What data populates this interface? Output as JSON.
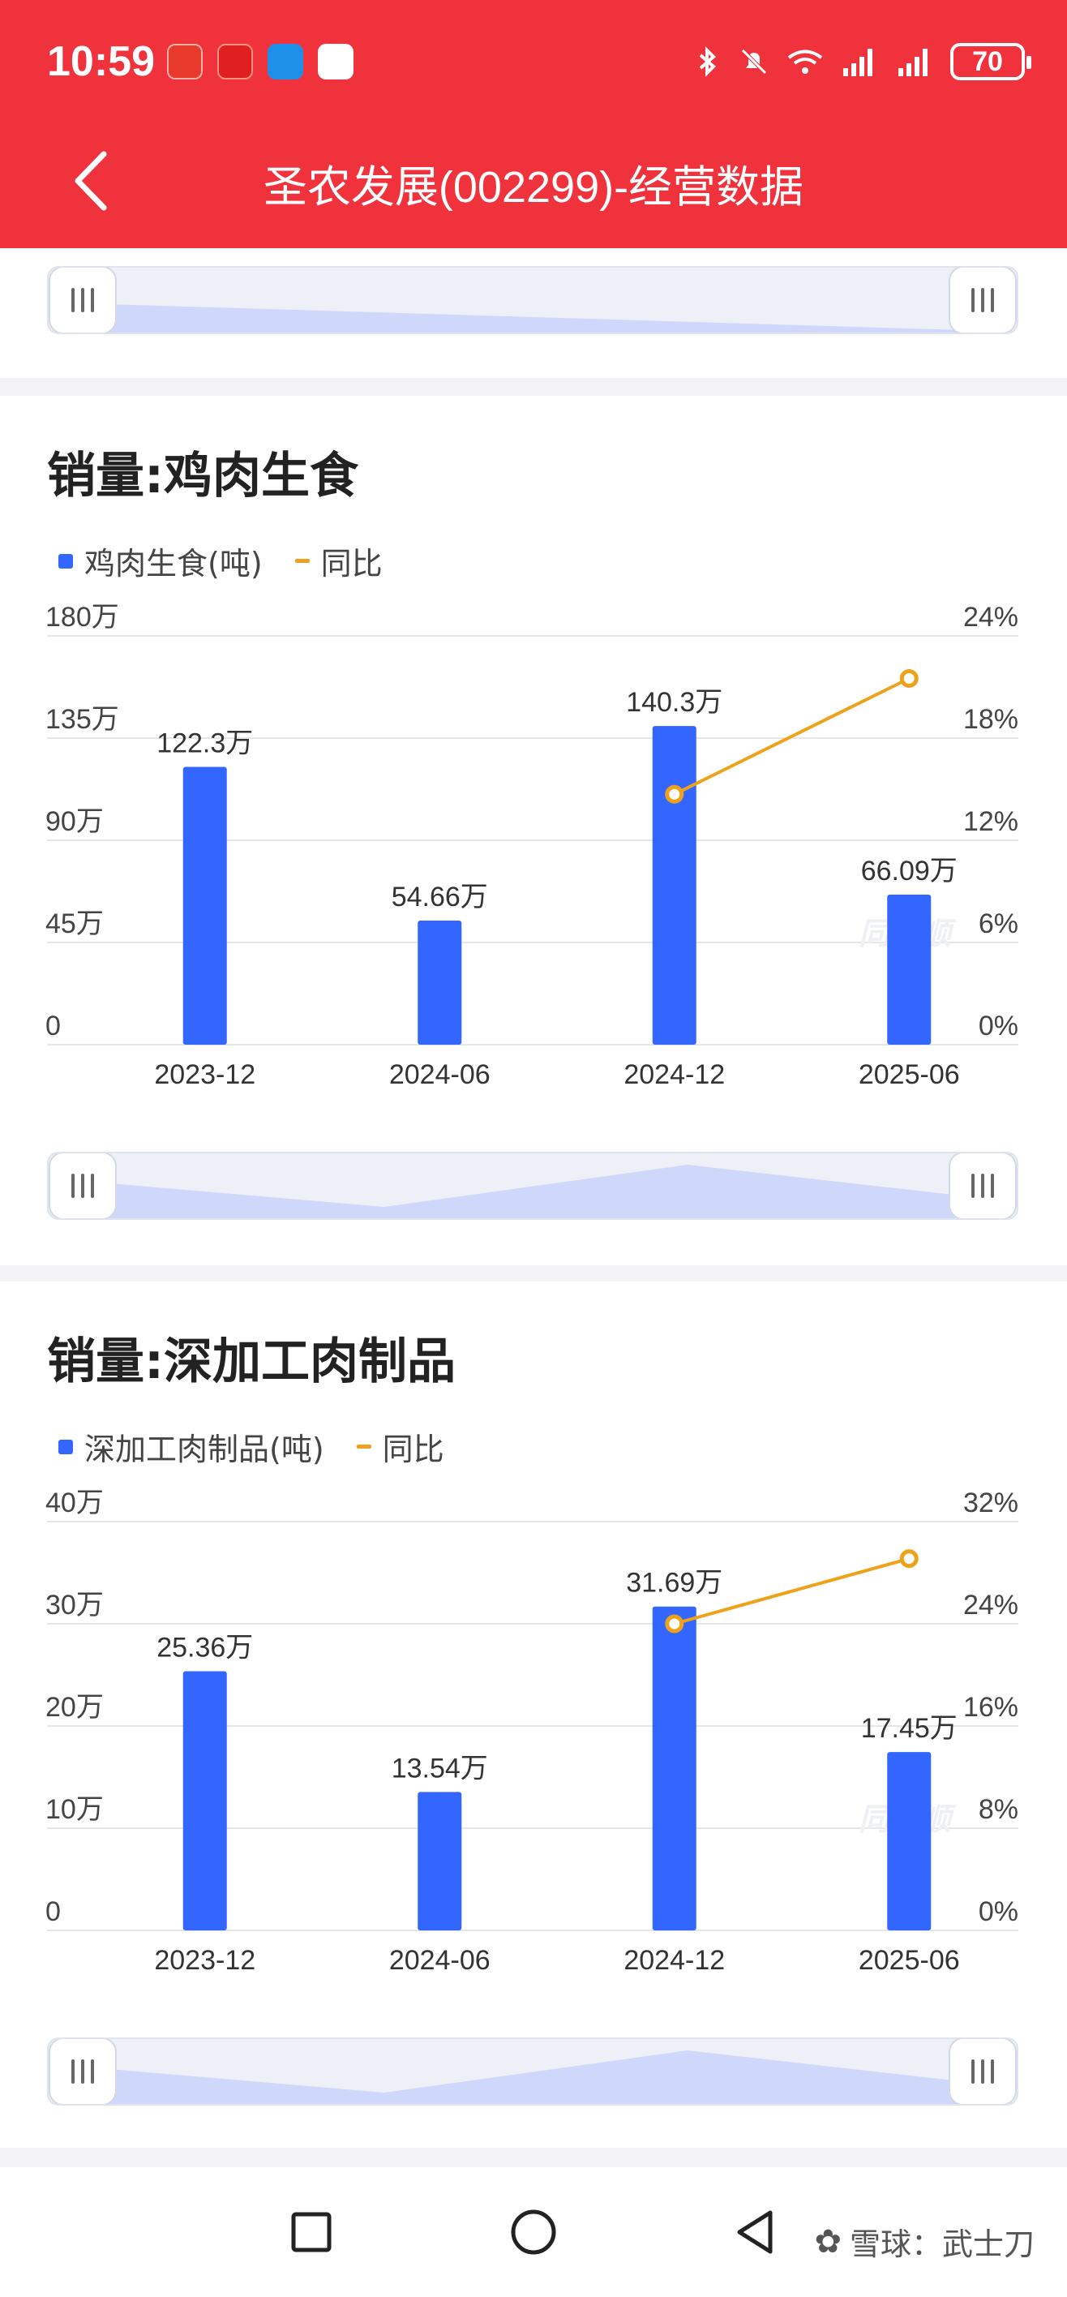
{
  "status_bar": {
    "time": "10:59",
    "battery": "70"
  },
  "header": {
    "title": "圣农发展(002299)-经营数据"
  },
  "charts": [
    {
      "card_title": "销量:鸡肉生食",
      "legend_bar": "鸡肉生食(吨)",
      "legend_line": "同比",
      "y_left_ticks": [
        "180万",
        "135万",
        "90万",
        "45万",
        "0"
      ],
      "y_right_ticks": [
        "24%",
        "18%",
        "12%",
        "6%",
        "0%"
      ],
      "watermark": "同花顺"
    },
    {
      "card_title": "销量:深加工肉制品",
      "legend_bar": "深加工肉制品(吨)",
      "legend_line": "同比",
      "y_left_ticks": [
        "40万",
        "30万",
        "20万",
        "10万",
        "0"
      ],
      "y_right_ticks": [
        "32%",
        "24%",
        "16%",
        "8%",
        "0%"
      ],
      "watermark": "同花顺"
    }
  ],
  "chart_data": [
    {
      "type": "bar",
      "title": "销量:鸡肉生食",
      "categories": [
        "2023-12",
        "2024-06",
        "2024-12",
        "2025-06"
      ],
      "ylim": [
        0,
        1800000
      ],
      "y2lim": [
        0,
        24
      ],
      "series": [
        {
          "name": "鸡肉生食(吨)",
          "type": "bar",
          "values": [
            1223000,
            546600,
            1403000,
            660900
          ],
          "labels": [
            "122.3万",
            "54.66万",
            "140.3万",
            "66.09万"
          ]
        },
        {
          "name": "同比",
          "type": "line",
          "axis": "right",
          "values": [
            null,
            null,
            14.7,
            21.5
          ]
        }
      ],
      "legend": "top-left",
      "grid": true
    },
    {
      "type": "bar",
      "title": "销量:深加工肉制品",
      "categories": [
        "2023-12",
        "2024-06",
        "2024-12",
        "2025-06"
      ],
      "ylim": [
        0,
        400000
      ],
      "y2lim": [
        0,
        32
      ],
      "series": [
        {
          "name": "深加工肉制品(吨)",
          "type": "bar",
          "values": [
            253600,
            135400,
            316900,
            174500
          ],
          "labels": [
            "25.36万",
            "13.54万",
            "31.69万",
            "17.45万"
          ]
        },
        {
          "name": "同比",
          "type": "line",
          "axis": "right",
          "values": [
            null,
            null,
            24.0,
            29.1
          ]
        }
      ],
      "legend": "top-left",
      "grid": true
    }
  ],
  "footer": {
    "watermark": "雪球：武士刀"
  }
}
